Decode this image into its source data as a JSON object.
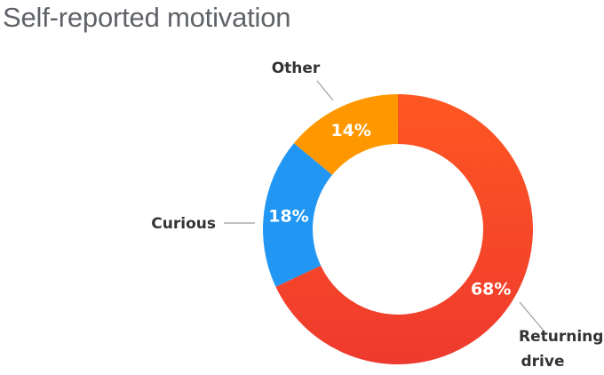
{
  "chart_data": {
    "type": "pie",
    "title": "Self-reported motivation",
    "donut": true,
    "slices": [
      {
        "label": "Returning drive",
        "label_lines": [
          "Returning",
          "drive"
        ],
        "value": 68,
        "display": "68%",
        "color": "#f2472b"
      },
      {
        "label": "Curious",
        "label_lines": [
          "Curious"
        ],
        "value": 18,
        "display": "18%",
        "color": "#2196f3"
      },
      {
        "label": "Other",
        "label_lines": [
          "Other"
        ],
        "value": 14,
        "display": "14%",
        "color": "#ff9800"
      }
    ]
  }
}
